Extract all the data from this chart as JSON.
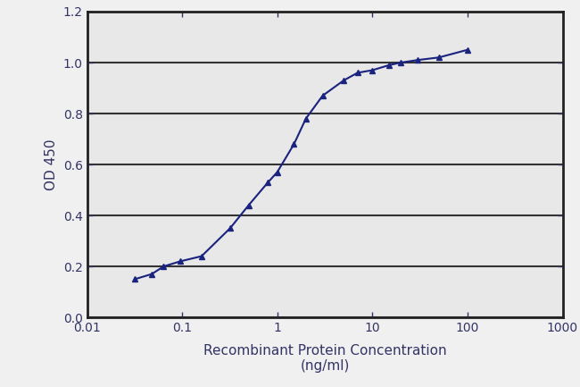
{
  "x": [
    0.032,
    0.048,
    0.064,
    0.096,
    0.16,
    0.32,
    0.5,
    0.8,
    1.0,
    1.5,
    2.0,
    3.0,
    5.0,
    7.0,
    10.0,
    15.0,
    20.0,
    30.0,
    50.0,
    100.0
  ],
  "y": [
    0.15,
    0.17,
    0.2,
    0.22,
    0.24,
    0.35,
    0.44,
    0.53,
    0.57,
    0.68,
    0.78,
    0.87,
    0.93,
    0.96,
    0.97,
    0.99,
    1.0,
    1.01,
    1.02,
    1.05
  ],
  "line_color": "#1a237e",
  "marker_style": "^",
  "marker_size": 4,
  "line_width": 1.5,
  "xlabel_line1": "Recombinant Protein Concentration",
  "xlabel_line2": "(ng/ml)",
  "ylabel": "OD 450",
  "ylim": [
    0.0,
    1.2
  ],
  "yticks": [
    0.0,
    0.2,
    0.4,
    0.6,
    0.8,
    1.0,
    1.2
  ],
  "xticks": [
    0.01,
    0.1,
    1,
    10,
    100,
    1000
  ],
  "xlim_log": [
    0.01,
    1000
  ],
  "background_color": "#f0f0f0",
  "plot_bg_color": "#e8e8e8",
  "grid_color": "#333333",
  "spine_color": "#222222",
  "font_color": "#333366",
  "label_fontsize": 11,
  "tick_fontsize": 10,
  "grid_linewidth": 1.5
}
